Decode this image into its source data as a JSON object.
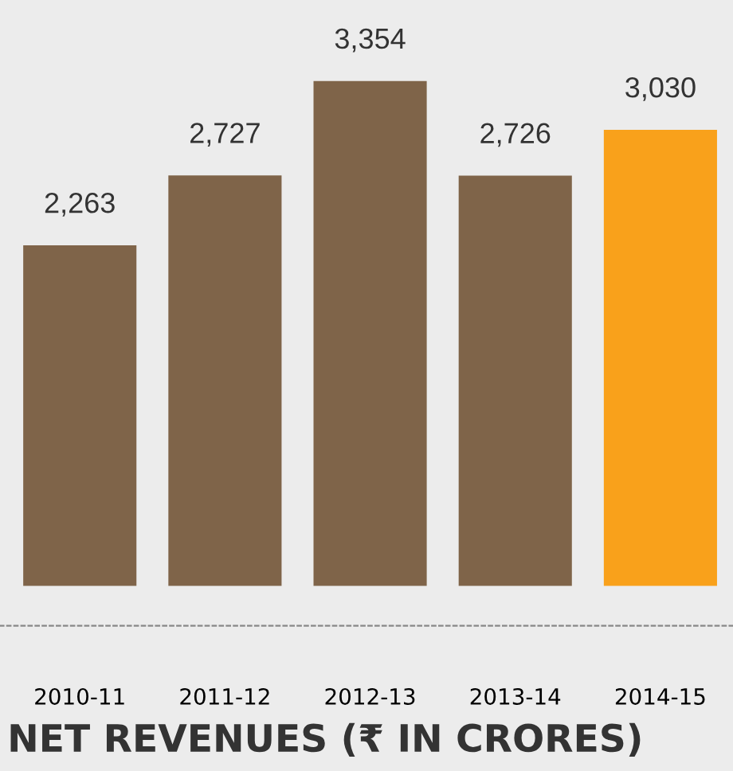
{
  "chart_data": {
    "type": "bar",
    "title": "NET REVENUES (₹ IN CRORES)",
    "categories": [
      "2010-11",
      "2011-12",
      "2012-13",
      "2013-14",
      "2014-15"
    ],
    "values": [
      2263,
      2727,
      3354,
      2726,
      3030
    ],
    "colors": [
      "#7f6449",
      "#7f6449",
      "#7f6449",
      "#7f6449",
      "#f9a11b"
    ],
    "value_labels": [
      "2,263",
      "2,727",
      "3,354",
      "2,726",
      "3,030"
    ],
    "grid": false,
    "legend": false
  }
}
